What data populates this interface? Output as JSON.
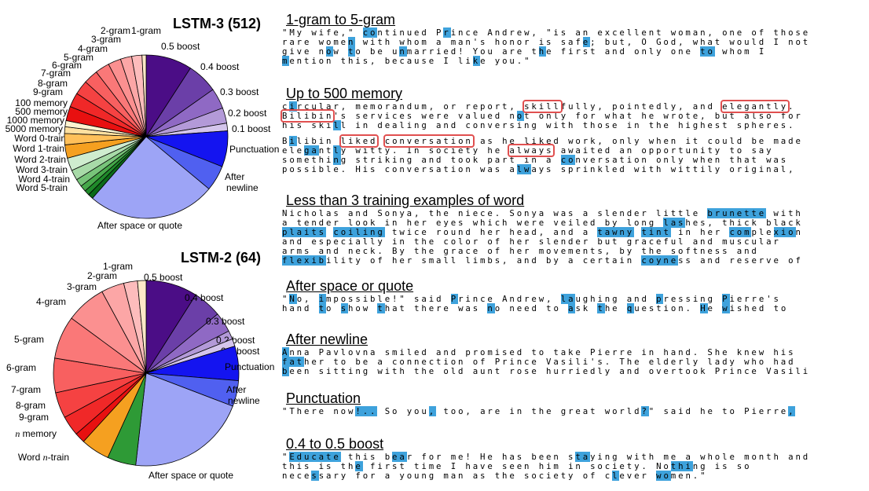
{
  "chart_data": [
    {
      "type": "pie",
      "title": "LSTM-3 (512)",
      "slices": [
        {
          "label": "0.5 boost",
          "value": 9.0,
          "color": "#4b0d86"
        },
        {
          "label": "0.4 boost",
          "value": 6.0,
          "color": "#6b3fa8"
        },
        {
          "label": "0.3 boost",
          "value": 4.0,
          "color": "#8f69c4"
        },
        {
          "label": "0.2 boost",
          "value": 3.0,
          "color": "#b39ad8"
        },
        {
          "label": "0.1 boost",
          "value": 1.5,
          "color": "#d4c5ec"
        },
        {
          "label": "Punctuation",
          "value": 7.0,
          "color": "#1414f0"
        },
        {
          "label": "After newline",
          "value": 5.0,
          "color": "#5060f0"
        },
        {
          "label": "After space or quote",
          "value": 25.0,
          "color": "#9da4f6"
        },
        {
          "label": "Word 5-train",
          "value": 1.0,
          "color": "#0b6a18"
        },
        {
          "label": "Word 4-train",
          "value": 1.0,
          "color": "#1f8a2a"
        },
        {
          "label": "Word 3-train",
          "value": 1.2,
          "color": "#46a84a"
        },
        {
          "label": "Word 2-train",
          "value": 1.5,
          "color": "#78c47a"
        },
        {
          "label": "Word 1-train",
          "value": 2.0,
          "color": "#a8daa8"
        },
        {
          "label": "Word 0-train",
          "value": 2.5,
          "color": "#cfeccf"
        },
        {
          "label": "5000 memory",
          "value": 2.6,
          "color": "#f5a020"
        },
        {
          "label": "1000 memory",
          "value": 2.2,
          "color": "#ffc05a"
        },
        {
          "label": "500 memory",
          "value": 1.3,
          "color": "#ffe0a0"
        },
        {
          "label": "100 memory",
          "value": 1.2,
          "color": "#fff3d0"
        },
        {
          "label": "9-gram",
          "value": 2.8,
          "color": "#e81010"
        },
        {
          "label": "8-gram",
          "value": 2.8,
          "color": "#f02828"
        },
        {
          "label": "7-gram",
          "value": 2.8,
          "color": "#f54242"
        },
        {
          "label": "6-gram",
          "value": 2.8,
          "color": "#f86060"
        },
        {
          "label": "5-gram",
          "value": 2.8,
          "color": "#fa7878"
        },
        {
          "label": "4-gram",
          "value": 2.5,
          "color": "#fb9090"
        },
        {
          "label": "3-gram",
          "value": 2.2,
          "color": "#fca6a6"
        },
        {
          "label": "2-gram",
          "value": 2.0,
          "color": "#fdbcbc"
        },
        {
          "label": "1-gram",
          "value": 0.8,
          "color": "#fee8c8"
        }
      ]
    },
    {
      "type": "pie",
      "title": "LSTM-2 (64)",
      "slices": [
        {
          "label": "0.5 boost",
          "value": 9.0,
          "color": "#4b0d86"
        },
        {
          "label": "0.4 boost",
          "value": 5.0,
          "color": "#6b3fa8"
        },
        {
          "label": "0.3 boost",
          "value": 3.5,
          "color": "#8f69c4"
        },
        {
          "label": "0.2 boost",
          "value": 1.5,
          "color": "#b39ad8"
        },
        {
          "label": "0.1 boost",
          "value": 1.3,
          "color": "#d4c5ec"
        },
        {
          "label": "Punctuation",
          "value": 6.0,
          "color": "#1414f0"
        },
        {
          "label": "After newline",
          "value": 4.5,
          "color": "#5060f0"
        },
        {
          "label": "After space or quote",
          "value": 21.0,
          "color": "#9da4f6"
        },
        {
          "label": "Word n-train",
          "value": 5.0,
          "color": "#2e9a36",
          "italic_n": true
        },
        {
          "label": "n memory",
          "value": 5.0,
          "color": "#f5a020",
          "italic_n": true
        },
        {
          "label": "9-gram",
          "value": 1.8,
          "color": "#e81010"
        },
        {
          "label": "8-gram",
          "value": 3.5,
          "color": "#f02828"
        },
        {
          "label": "7-gram",
          "value": 4.5,
          "color": "#f54242"
        },
        {
          "label": "6-gram",
          "value": 6.0,
          "color": "#f86060"
        },
        {
          "label": "5-gram",
          "value": 7.5,
          "color": "#fa7878"
        },
        {
          "label": "4-gram",
          "value": 7.0,
          "color": "#fb9090"
        },
        {
          "label": "3-gram",
          "value": 4.0,
          "color": "#fca6a6"
        },
        {
          "label": "2-gram",
          "value": 2.4,
          "color": "#fdbcbc"
        },
        {
          "label": "1-gram",
          "value": 1.5,
          "color": "#fee8c8"
        }
      ]
    }
  ],
  "sections": [
    {
      "title": "1-gram to 5-gram",
      "paragraphs": [
        [
          "\"My wife,\" continued Prince Andrew, \"is an excellent woman, one of those",
          "rare women with whom a man's honor is safe; but, O God, what would I not",
          "give now to be unmarried! You are the first and only one to whom I",
          "mention this, because I like you.\""
        ]
      ]
    },
    {
      "title": "Up to 500 memory",
      "paragraphs": [
        [
          "circular, memorandum, or report, skillfully, pointedly, and elegantly.",
          "Bilibin's services were valued not only for what he wrote, but also for",
          "his skill in dealing and conversing with those in the highest spheres."
        ],
        [
          "Bilibin liked conversation as he liked work, only when it could be made",
          "elegantly witty. In society he always awaited an opportunity to say",
          "something striking and took part in a conversation only when that was",
          "possible. His conversation was always sprinkled with wittily original,"
        ]
      ]
    },
    {
      "title": "Less than 3 training examples of word",
      "paragraphs": [
        [
          "Nicholas and Sonya, the niece. Sonya was a slender little brunette with",
          "a tender look in her eyes which were veiled by long lashes, thick black",
          "plaits coiling twice round her head, and a tawny tint in her complexion",
          "and especially in the color of her slender but graceful and muscular",
          "arms and neck. By the grace of her movements, by the softness and",
          "flexibility of her small limbs, and by a certain coyness and reserve of"
        ]
      ]
    },
    {
      "title": "After space or quote",
      "paragraphs": [
        [
          "\"No, impossible!\" said Prince Andrew, laughing and pressing Pierre's",
          "hand to show that there was no need to ask the question. He wished to"
        ]
      ]
    },
    {
      "title": "After newline",
      "paragraphs": [
        [
          "Anna Pavlovna smiled and promised to take Pierre in hand. She knew his",
          "father to be a connection of Prince Vasili's. The elderly lady who had",
          "been sitting with the old aunt rose hurriedly and overtook Prince Vasili"
        ]
      ]
    },
    {
      "title": "Punctuation",
      "paragraphs": [
        [
          "\"There now!.. So you, too, are in the great world?\" said he to Pierre,"
        ]
      ]
    },
    {
      "title": "0.4 to 0.5 boost",
      "paragraphs": [
        [
          "\"Educate this bear for me! He has been staying with me a whole month and",
          "this is the first time I have seen him in society. Nothing is so",
          "necessary for a young man as the society of clever women.\""
        ]
      ]
    }
  ]
}
